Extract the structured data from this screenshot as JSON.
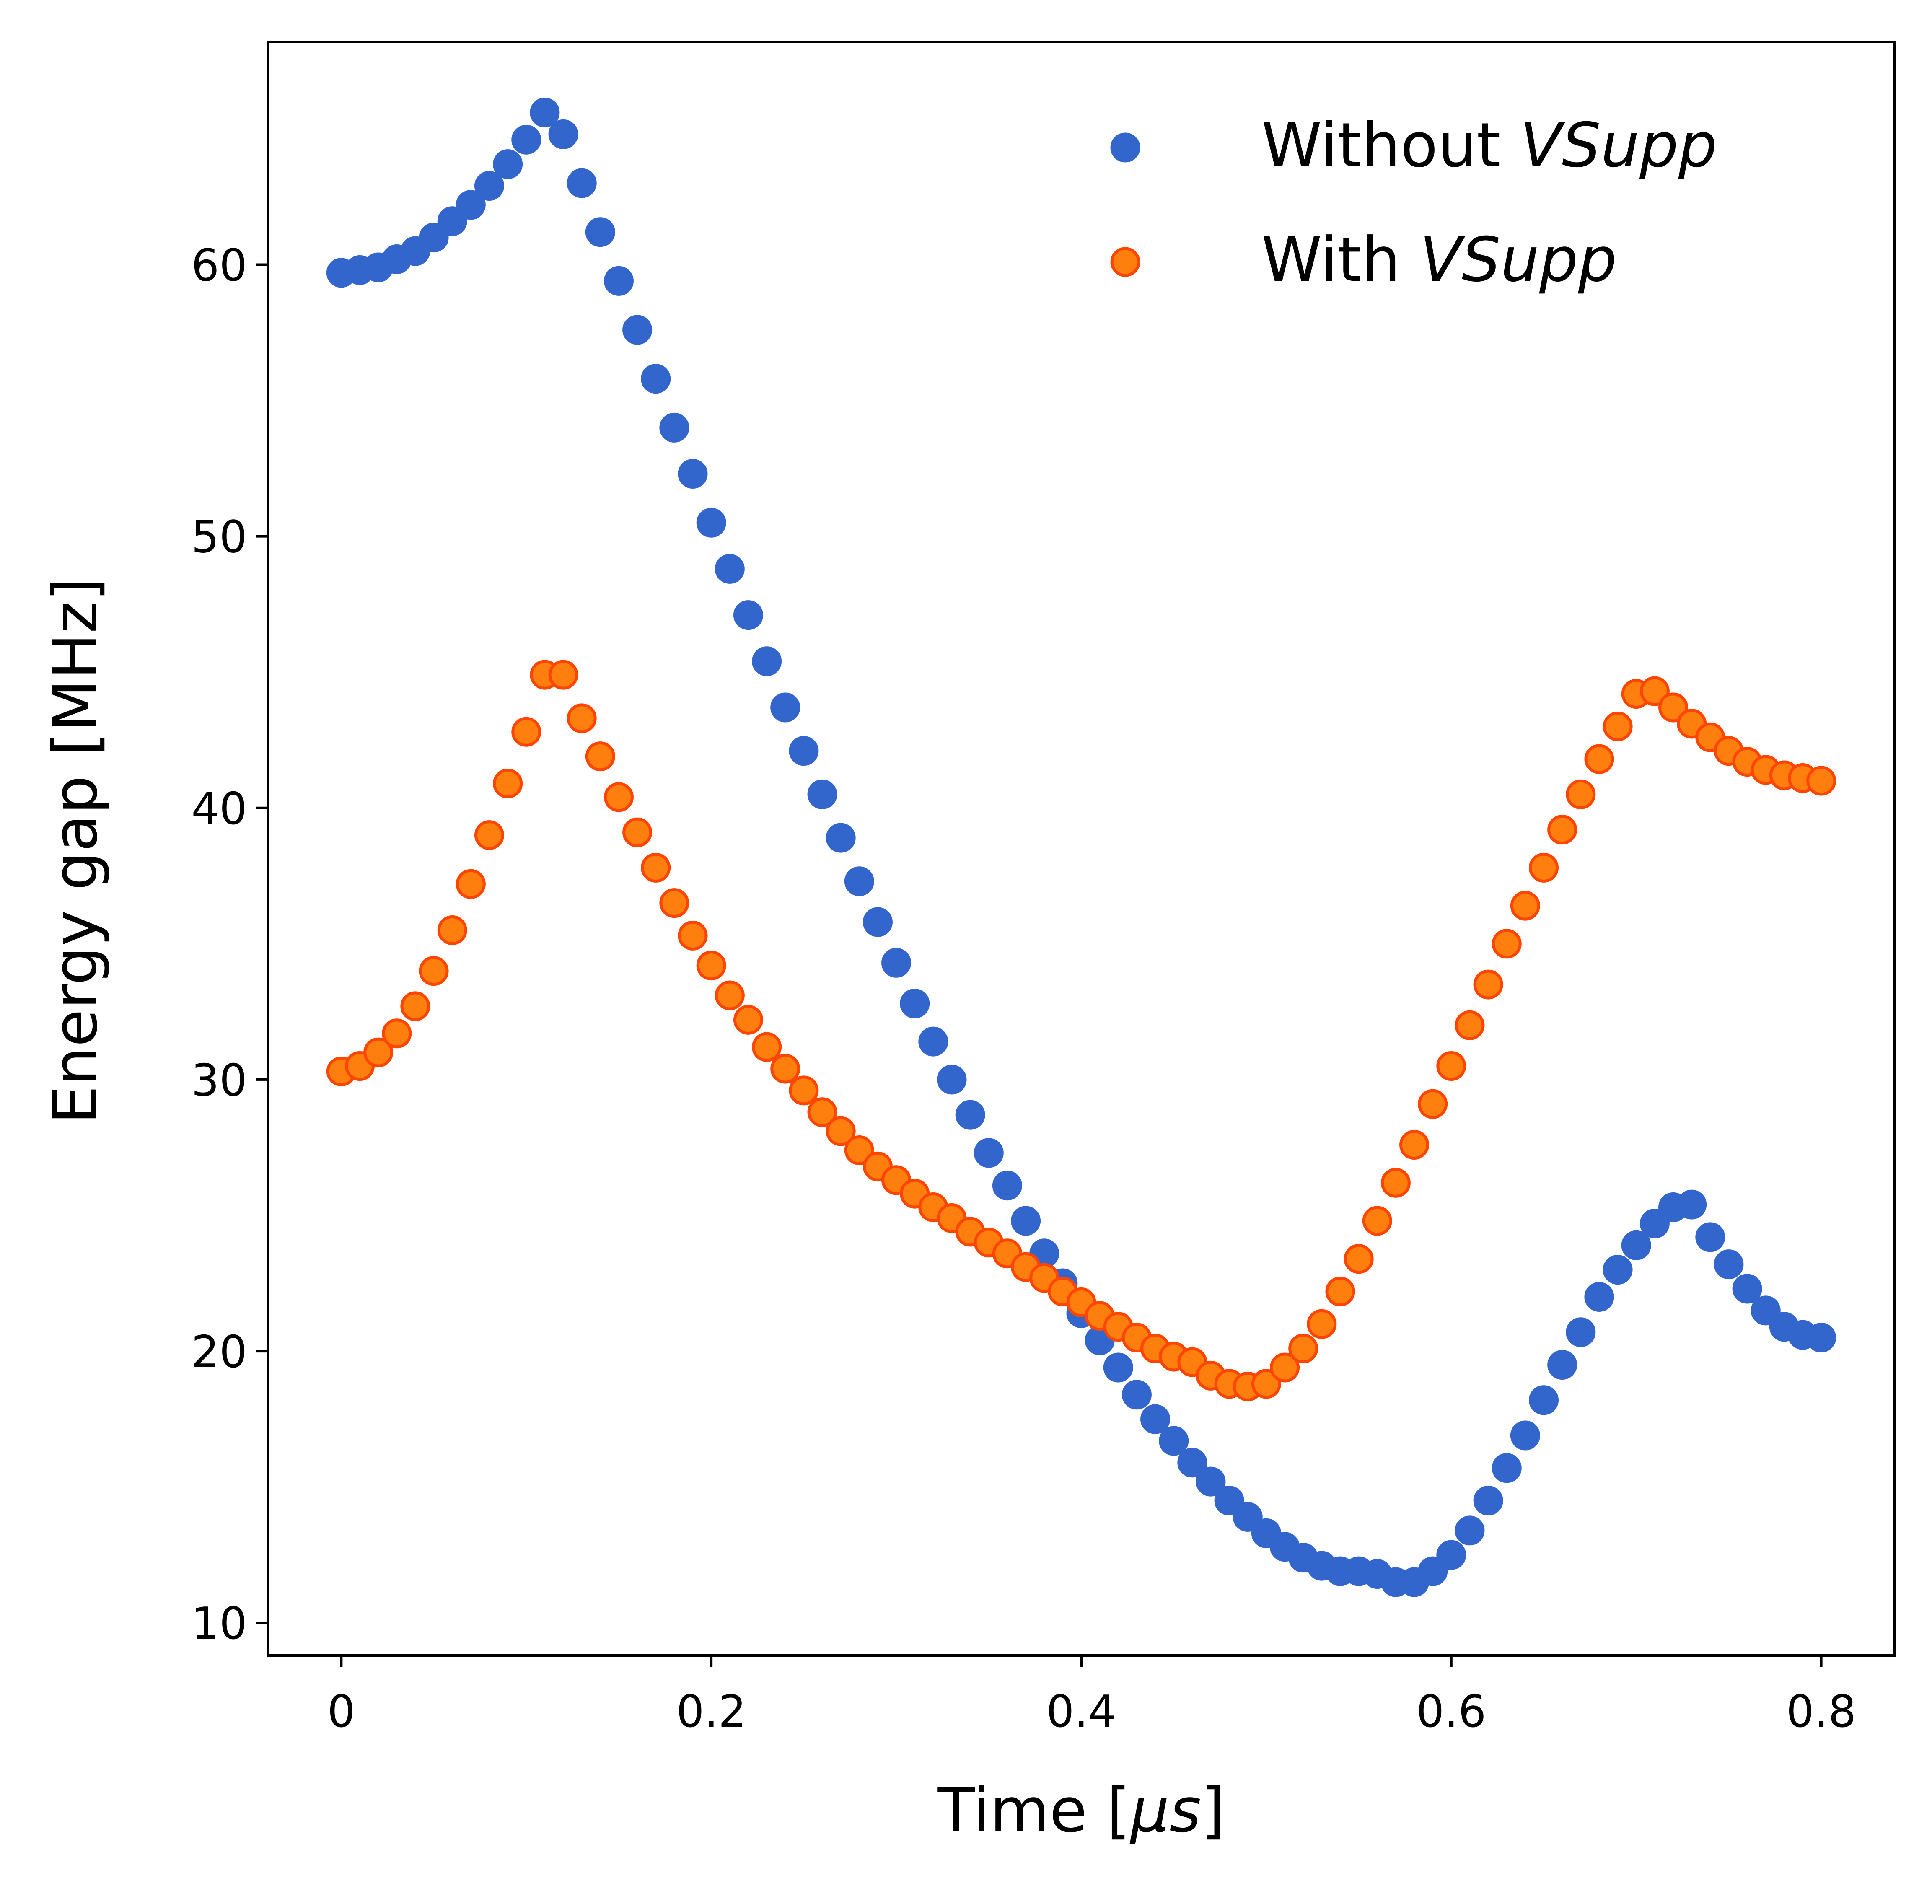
{
  "chart_data": {
    "type": "scatter",
    "title": "",
    "xlabel": {
      "prefix": "Time [",
      "italic": "μs",
      "suffix": "]"
    },
    "ylabel": "Energy gap [MHz]",
    "xlim": [
      -0.0395,
      0.8395
    ],
    "ylim": [
      8.8,
      68.2
    ],
    "x_ticks": [
      0,
      0.2,
      0.4,
      0.6,
      0.8
    ],
    "x_tick_labels": [
      "0",
      "0.2",
      "0.4",
      "0.6",
      "0.8"
    ],
    "y_ticks": [
      10,
      20,
      30,
      40,
      50,
      60
    ],
    "y_tick_labels": [
      "10",
      "20",
      "30",
      "40",
      "50",
      "60"
    ],
    "grid": false,
    "legend_position": "top-right",
    "x": [
      0,
      0.01,
      0.02,
      0.03,
      0.04,
      0.05,
      0.06,
      0.07,
      0.08,
      0.09,
      0.1,
      0.11,
      0.12,
      0.13,
      0.14,
      0.15,
      0.16,
      0.17,
      0.18,
      0.19,
      0.2,
      0.21,
      0.22,
      0.23,
      0.24,
      0.25,
      0.26,
      0.27,
      0.28,
      0.29,
      0.3,
      0.31,
      0.32,
      0.33,
      0.34,
      0.35,
      0.36,
      0.37,
      0.38,
      0.39,
      0.4,
      0.41,
      0.42,
      0.43,
      0.44,
      0.45,
      0.46,
      0.47,
      0.48,
      0.49,
      0.5,
      0.51,
      0.52,
      0.53,
      0.54,
      0.55,
      0.56,
      0.57,
      0.58,
      0.59,
      0.6,
      0.61,
      0.62,
      0.63,
      0.64,
      0.65,
      0.66,
      0.67,
      0.68,
      0.69,
      0.7,
      0.71,
      0.72,
      0.73,
      0.74,
      0.75,
      0.76,
      0.77,
      0.78,
      0.79,
      0.8
    ],
    "series": [
      {
        "name": "Without VSupp",
        "label_prefix": "Without ",
        "label_italic": "VSupp",
        "color": "#3366cc",
        "edge_color": "#3366cc",
        "values": [
          59.7,
          59.8,
          59.9,
          60.2,
          60.5,
          61.0,
          61.6,
          62.2,
          62.9,
          63.7,
          64.6,
          65.6,
          64.8,
          63.0,
          61.2,
          59.4,
          57.6,
          55.8,
          54.0,
          52.3,
          50.5,
          48.8,
          47.1,
          45.4,
          43.7,
          42.1,
          40.5,
          38.9,
          37.3,
          35.8,
          34.3,
          32.8,
          31.4,
          30.0,
          28.7,
          27.3,
          26.1,
          24.8,
          23.6,
          22.5,
          21.4,
          20.4,
          19.4,
          18.4,
          17.5,
          16.7,
          15.9,
          15.2,
          14.5,
          13.9,
          13.3,
          12.8,
          12.4,
          12.1,
          11.9,
          11.9,
          11.8,
          11.5,
          11.5,
          11.9,
          12.5,
          13.4,
          14.5,
          15.7,
          16.9,
          18.2,
          19.5,
          20.7,
          22.0,
          23.0,
          23.9,
          24.7,
          25.3,
          25.4,
          24.2,
          23.2,
          22.3,
          21.5,
          20.9,
          20.6,
          20.5
        ]
      },
      {
        "name": "With VSupp",
        "label_prefix": "With ",
        "label_italic": "VSupp",
        "color": "#ff7f0e",
        "edge_color": "#ff4500",
        "values": [
          30.3,
          30.5,
          31.0,
          31.7,
          32.7,
          34.0,
          35.5,
          37.2,
          39.0,
          40.9,
          42.8,
          44.9,
          44.9,
          43.3,
          41.9,
          40.4,
          39.1,
          37.8,
          36.5,
          35.3,
          34.2,
          33.1,
          32.2,
          31.2,
          30.4,
          29.6,
          28.8,
          28.1,
          27.4,
          26.8,
          26.3,
          25.8,
          25.3,
          24.9,
          24.4,
          24.0,
          23.6,
          23.1,
          22.7,
          22.2,
          21.8,
          21.3,
          20.9,
          20.5,
          20.1,
          19.8,
          19.6,
          19.1,
          18.8,
          18.7,
          18.8,
          19.4,
          20.1,
          21.0,
          22.2,
          23.4,
          24.8,
          26.2,
          27.6,
          29.1,
          30.5,
          32.0,
          33.5,
          35.0,
          36.4,
          37.8,
          39.2,
          40.5,
          41.8,
          43.0,
          44.2,
          44.3,
          43.7,
          43.1,
          42.6,
          42.1,
          41.7,
          41.4,
          41.2,
          41.1,
          41.0
        ]
      }
    ]
  }
}
